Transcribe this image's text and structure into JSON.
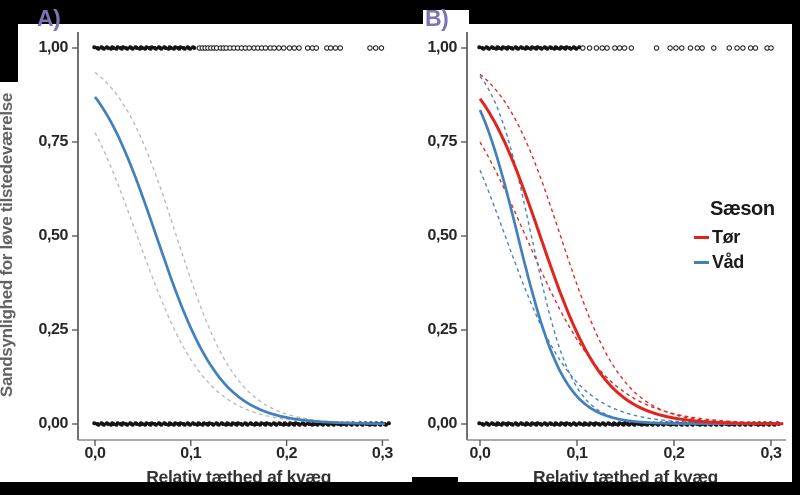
{
  "colors": {
    "blue": "#4180bd",
    "red": "#e0251e",
    "gray_ci": "#b8b8b8",
    "purple_label": "#7d73b5",
    "axis_v": "#4d4d4d",
    "axis_h": "#8c8c8c",
    "tick_mark": "#5a5a5a",
    "point_black": "#141414",
    "page_bg": "#000000",
    "figure_bg": "#ffffff"
  },
  "figure": {
    "panel_a_label": "A)",
    "panel_b_label": "B)"
  },
  "chart_data": [
    {
      "panel": "A",
      "type": "line",
      "title": "",
      "xlabel": "Relativ tæthed af kvæg",
      "ylabel": "Sandsynlighed for løve tilstedeværelse",
      "xlim": [
        0,
        0.3
      ],
      "ylim": [
        0,
        1
      ],
      "grid": false,
      "x_ticks": [
        {
          "v": 0.0,
          "label": "0,0"
        },
        {
          "v": 0.1,
          "label": "0,1"
        },
        {
          "v": 0.2,
          "label": "0,2"
        },
        {
          "v": 0.3,
          "label": "0,3"
        }
      ],
      "y_ticks": [
        {
          "v": 0.0,
          "label": "0,00"
        },
        {
          "v": 0.25,
          "label": "0,25"
        },
        {
          "v": 0.5,
          "label": "0,50"
        },
        {
          "v": 0.75,
          "label": "0,75"
        },
        {
          "v": 1.0,
          "label": "1,00"
        }
      ],
      "series": [
        {
          "name": "ci-upper",
          "role": "ci",
          "color_key": "gray_ci",
          "style": "dashed",
          "curve": "logistic",
          "p_at_x0": 0.935,
          "x_at_p50": 0.085
        },
        {
          "name": "ci-lower",
          "role": "ci",
          "color_key": "gray_ci",
          "style": "dashed",
          "curve": "logistic",
          "p_at_x0": 0.775,
          "x_at_p50": 0.044
        },
        {
          "name": "model-fit",
          "role": "fit",
          "color_key": "blue",
          "style": "solid",
          "curve": "logistic",
          "p_at_x0": 0.87,
          "x_at_p50": 0.064
        }
      ],
      "observations": {
        "ones": {
          "y": 1.0,
          "dense_range": [
            0,
            0.106
          ],
          "scatter": [
            0.109,
            0.112,
            0.115,
            0.118,
            0.121,
            0.124,
            0.127,
            0.131,
            0.134,
            0.137,
            0.141,
            0.145,
            0.149,
            0.153,
            0.157,
            0.161,
            0.166,
            0.17,
            0.174,
            0.178,
            0.183,
            0.187,
            0.192,
            0.197,
            0.203,
            0.208,
            0.213,
            0.222,
            0.227,
            0.231,
            0.242,
            0.246,
            0.251,
            0.256,
            0.287,
            0.293,
            0.299
          ]
        },
        "zeros": {
          "y": 0.0,
          "dense_range": [
            0,
            0.307
          ],
          "scatter": []
        }
      }
    },
    {
      "panel": "B",
      "type": "line",
      "title": "",
      "xlabel": "Relativ tæthed af kvæg",
      "ylabel": "Sandsynlighed for løve tilstedeværelse",
      "xlim": [
        0,
        0.3
      ],
      "ylim": [
        0,
        1
      ],
      "grid": false,
      "x_ticks": [
        {
          "v": 0.0,
          "label": "0,0"
        },
        {
          "v": 0.1,
          "label": "0,1"
        },
        {
          "v": 0.2,
          "label": "0,2"
        },
        {
          "v": 0.3,
          "label": "0,3"
        }
      ],
      "y_ticks": [
        {
          "v": 0.0,
          "label": "0,00"
        },
        {
          "v": 0.25,
          "label": "0,25"
        },
        {
          "v": 0.5,
          "label": "0,50"
        },
        {
          "v": 0.75,
          "label": "0,75"
        },
        {
          "v": 1.0,
          "label": "1,00"
        }
      ],
      "legend": {
        "title": "Sæson",
        "items": [
          {
            "label": "Tør",
            "color_key": "red"
          },
          {
            "label": "Våd",
            "color_key": "blue"
          }
        ]
      },
      "series": [
        {
          "name": "Tør ci-upper",
          "role": "ci",
          "color_key": "red",
          "style": "dashed",
          "curve": "logistic",
          "p_at_x0": 0.93,
          "x_at_p50": 0.083
        },
        {
          "name": "Tør ci-lower",
          "role": "ci",
          "color_key": "red",
          "style": "dashed",
          "curve": "logistic",
          "p_at_x0": 0.75,
          "x_at_p50": 0.047
        },
        {
          "name": "Våd ci-upper",
          "role": "ci",
          "color_key": "blue",
          "style": "dashed",
          "curve": "logistic",
          "p_at_x0": 0.925,
          "x_at_p50": 0.053
        },
        {
          "name": "Våd ci-lower",
          "role": "ci",
          "color_key": "blue",
          "style": "dashed",
          "curve": "logistic",
          "p_at_x0": 0.675,
          "x_at_p50": 0.026
        },
        {
          "name": "Våd model-fit",
          "role": "fit",
          "color_key": "blue",
          "style": "solid",
          "curve": "logistic",
          "p_at_x0": 0.835,
          "x_at_p50": 0.039
        },
        {
          "name": "Tør model-fit",
          "role": "fit",
          "color_key": "red",
          "style": "solid",
          "curve": "logistic",
          "p_at_x0": 0.865,
          "x_at_p50": 0.062
        }
      ],
      "observations": {
        "ones": {
          "y": 1.0,
          "dense_range": [
            0,
            0.104
          ],
          "scatter": [
            0.106,
            0.113,
            0.12,
            0.126,
            0.131,
            0.139,
            0.144,
            0.149,
            0.156,
            0.182,
            0.196,
            0.202,
            0.208,
            0.217,
            0.224,
            0.229,
            0.241,
            0.257,
            0.265,
            0.271,
            0.279,
            0.284,
            0.296,
            0.3
          ]
        },
        "zeros": {
          "y": 0.0,
          "dense_range": [
            0,
            0.31
          ],
          "scatter": []
        }
      }
    }
  ]
}
